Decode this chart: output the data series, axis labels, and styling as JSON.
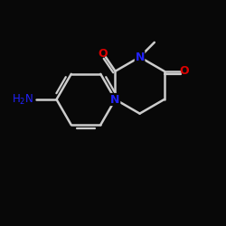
{
  "background": "#080808",
  "bond_color": "#cccccc",
  "N_color": "#2222ff",
  "O_color": "#dd0000",
  "bond_lw": 1.8,
  "figsize": [
    2.5,
    2.5
  ],
  "dpi": 100,
  "xlim": [
    -1,
    9
  ],
  "ylim": [
    -1,
    9
  ]
}
